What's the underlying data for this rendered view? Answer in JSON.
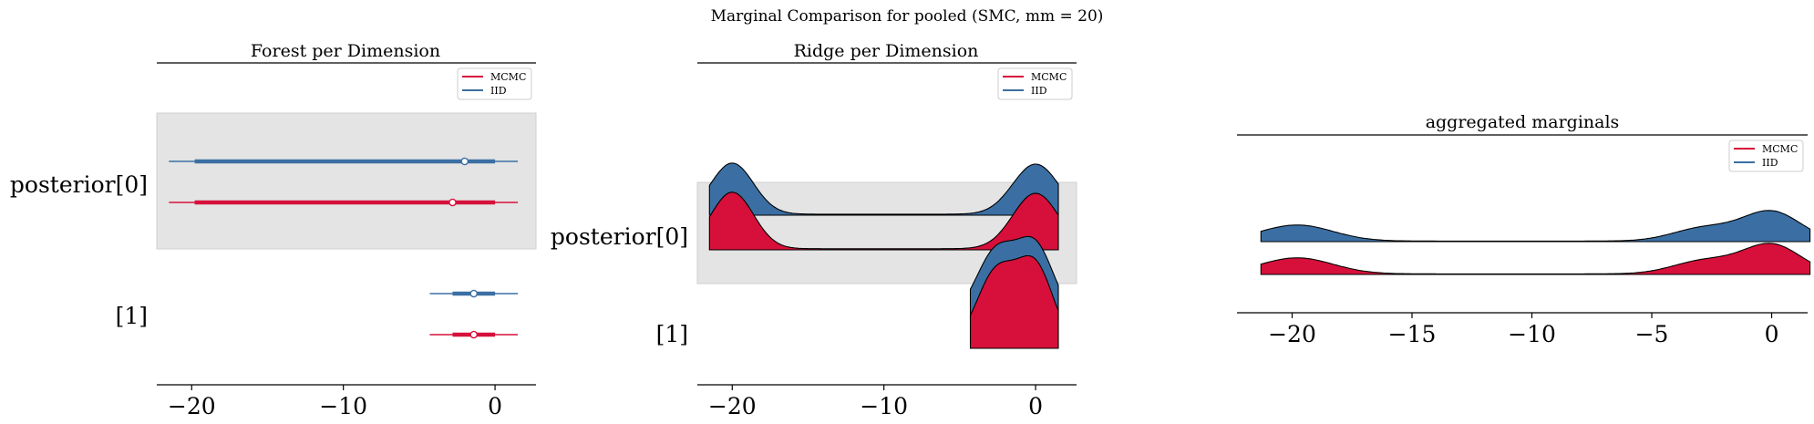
{
  "figure": {
    "title": "Marginal Comparison for pooled (SMC, mm = 20)"
  },
  "colors": {
    "mcmc": "#d6103a",
    "iid": "#3b6fa3",
    "band": "#e4e4e4"
  },
  "chart_data": [
    {
      "type": "forest",
      "title": "Forest per Dimension",
      "xlim": [
        -22.3,
        2.7
      ],
      "xticks": [
        -20,
        -10,
        0
      ],
      "xtick_labels": [
        "−20",
        "−10",
        "0"
      ],
      "rows": [
        "posterior[0]",
        "[1]"
      ],
      "legend": {
        "placement": "upper-right",
        "entries": [
          "MCMC",
          "IID"
        ]
      },
      "series": [
        {
          "name": "MCMC",
          "intervals": [
            {
              "row": 0,
              "hdi94": [
                -21.5,
                1.5
              ],
              "iqr": [
                -19.8,
                0
              ],
              "median": -2.8
            },
            {
              "row": 1,
              "hdi94": [
                -4.3,
                1.5
              ],
              "iqr": [
                -2.8,
                0
              ],
              "median": -1.4
            }
          ]
        },
        {
          "name": "IID",
          "intervals": [
            {
              "row": 0,
              "hdi94": [
                -21.5,
                1.5
              ],
              "iqr": [
                -19.8,
                0
              ],
              "median": -2.0
            },
            {
              "row": 1,
              "hdi94": [
                -4.3,
                1.5
              ],
              "iqr": [
                -2.8,
                0
              ],
              "median": -1.4
            }
          ]
        }
      ]
    },
    {
      "type": "ridgeplot",
      "title": "Ridge per Dimension",
      "xlim": [
        -22.3,
        2.7
      ],
      "xticks": [
        -20,
        -10,
        0
      ],
      "xtick_labels": [
        "−20",
        "−10",
        "0"
      ],
      "rows": [
        "posterior[0]",
        "[1]"
      ],
      "legend": {
        "placement": "upper-right",
        "entries": [
          "MCMC",
          "IID"
        ]
      },
      "series": [
        {
          "name": "MCMC",
          "rows": [
            {
              "row": 0,
              "range": [
                -21.5,
                1.5
              ],
              "modes": [
                {
                  "x": -20,
                  "h": 1.0,
                  "w": 1.4
                },
                {
                  "x": 0,
                  "h": 0.98,
                  "w": 1.5
                }
              ]
            },
            {
              "row": 1,
              "range": [
                -4.3,
                1.5
              ],
              "modes": [
                {
                  "x": -2.6,
                  "h": 0.95,
                  "w": 1.3
                },
                {
                  "x": 0,
                  "h": 1.0,
                  "w": 1.2
                }
              ]
            }
          ]
        },
        {
          "name": "IID",
          "rows": [
            {
              "row": 0,
              "range": [
                -21.5,
                1.5
              ],
              "modes": [
                {
                  "x": -20,
                  "h": 1.0,
                  "w": 1.4
                },
                {
                  "x": 0,
                  "h": 0.98,
                  "w": 1.5
                }
              ]
            },
            {
              "row": 1,
              "range": [
                -4.3,
                1.5
              ],
              "modes": [
                {
                  "x": -2.6,
                  "h": 0.95,
                  "w": 1.3
                },
                {
                  "x": 0,
                  "h": 1.0,
                  "w": 1.2
                }
              ]
            }
          ]
        }
      ]
    },
    {
      "type": "ridgeplot",
      "title": "aggregated marginals",
      "xlim": [
        -22.3,
        1.5
      ],
      "xticks": [
        -20,
        -15,
        -10,
        -5,
        0
      ],
      "xtick_labels": [
        "−20",
        "−15",
        "−10",
        "−5",
        "0"
      ],
      "legend": {
        "placement": "upper-right",
        "entries": [
          "MCMC",
          "IID"
        ]
      },
      "series": [
        {
          "name": "IID",
          "range": [
            -21.3,
            1.6
          ],
          "modes": [
            {
              "x": -19.8,
              "h": 0.55,
              "w": 1.5
            },
            {
              "x": -2.8,
              "h": 0.45,
              "w": 1.3
            },
            {
              "x": 0,
              "h": 1.0,
              "w": 1.2
            }
          ]
        },
        {
          "name": "MCMC",
          "range": [
            -21.3,
            1.6
          ],
          "modes": [
            {
              "x": -19.8,
              "h": 0.55,
              "w": 1.5
            },
            {
              "x": -2.8,
              "h": 0.45,
              "w": 1.3
            },
            {
              "x": 0,
              "h": 1.0,
              "w": 1.2
            }
          ]
        }
      ]
    }
  ]
}
